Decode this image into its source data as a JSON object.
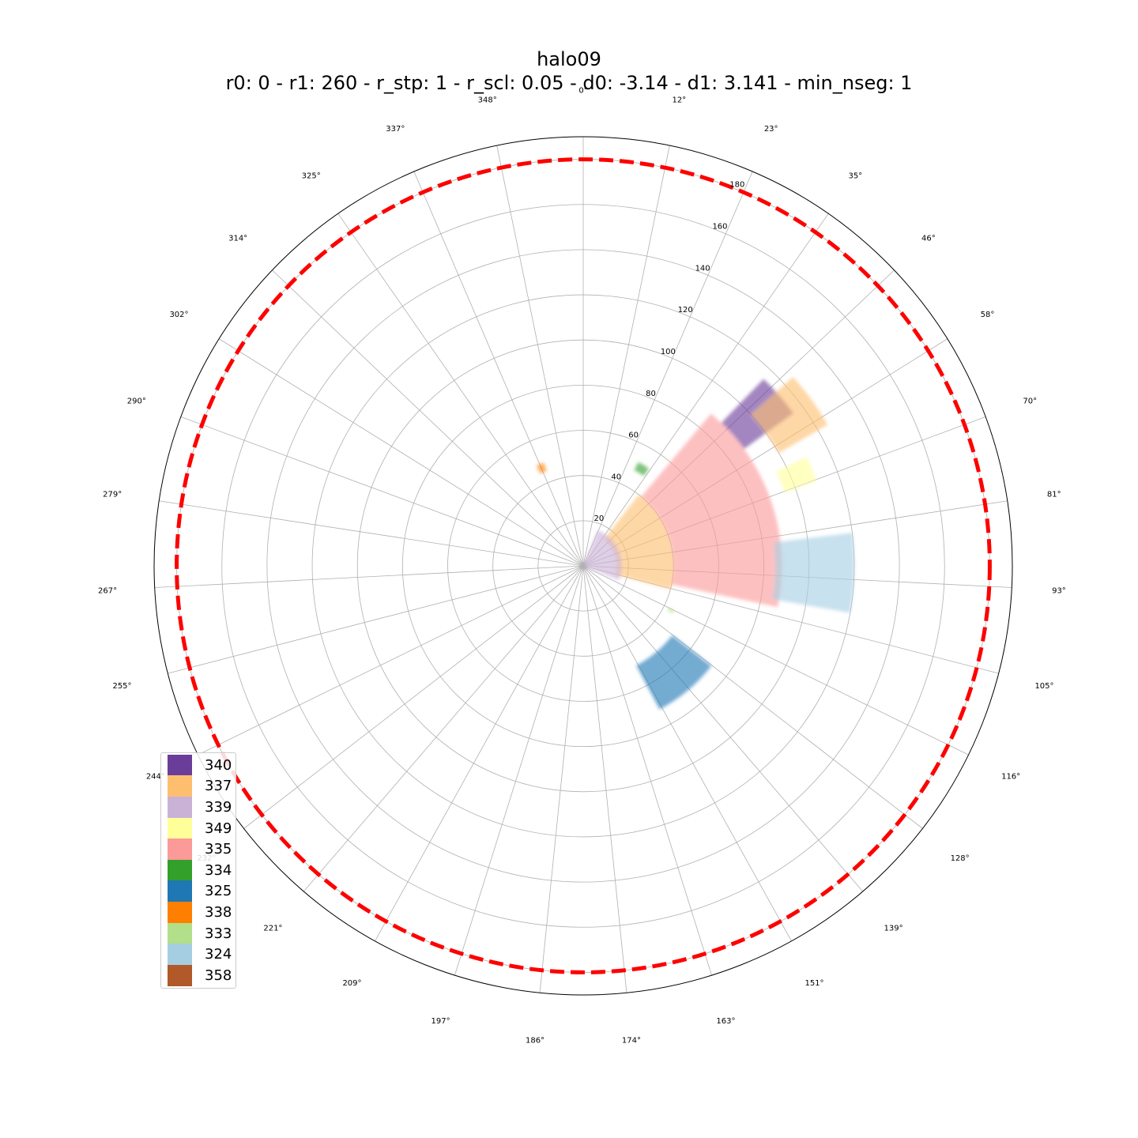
{
  "title": {
    "line1": "halo09",
    "line2": "r0: 0 - r1: 260 - r_stp: 1 - r_scl: 0.05 - d0: -3.14 - d1: 3.141 - min_nseg: 1"
  },
  "chart_data": {
    "type": "scatter",
    "projection": "polar",
    "theta_direction": "clockwise",
    "theta_zero": "top",
    "rlim": [
      0,
      190
    ],
    "r_ticks": [
      20,
      40,
      60,
      80,
      100,
      120,
      140,
      160,
      180
    ],
    "theta_ticks": [
      "0°",
      "12°",
      "23°",
      "35°",
      "46°",
      "58°",
      "70°",
      "81°",
      "93°",
      "105°",
      "116°",
      "128°",
      "139°",
      "151°",
      "163°",
      "174°",
      "186°",
      "197°",
      "209°",
      "221°",
      "232°",
      "244°",
      "255°",
      "267°",
      "279°",
      "290°",
      "302°",
      "314°",
      "325°",
      "337°",
      "348°"
    ],
    "grid": true,
    "reference_circle": {
      "r": 180,
      "color": "#ff0000",
      "style": "dashed"
    },
    "legend_position": "lower-left",
    "series": [
      {
        "name": "340",
        "color": "#6a3d9a",
        "regions": [
          {
            "theta_range": [
              44,
              54
            ],
            "r_range": [
              88,
              115
            ]
          }
        ]
      },
      {
        "name": "337",
        "color": "#fdbf6f",
        "regions": [
          {
            "theta_range": [
              38,
              105
            ],
            "r_range": [
              15,
              40
            ]
          },
          {
            "theta_range": [
              48,
              60
            ],
            "r_range": [
              100,
              125
            ]
          }
        ]
      },
      {
        "name": "339",
        "color": "#cab2d6",
        "regions": [
          {
            "theta_range": [
              22,
              112
            ],
            "r_range": [
              0,
              17
            ]
          }
        ]
      },
      {
        "name": "349",
        "color": "#ffff99",
        "regions": [
          {
            "theta_range": [
              64,
              70
            ],
            "r_range": [
              95,
              110
            ]
          }
        ]
      },
      {
        "name": "335",
        "color": "#fb9a99",
        "regions": [
          {
            "theta_range": [
              40,
              102
            ],
            "r_range": [
              40,
              88
            ]
          }
        ]
      },
      {
        "name": "334",
        "color": "#33a02c",
        "regions": [
          {
            "theta_range": [
              28,
              34
            ],
            "r_range": [
              48,
              52
            ]
          }
        ]
      },
      {
        "name": "325",
        "color": "#1f78b4",
        "regions": [
          {
            "theta_range": [
              128,
              152
            ],
            "r_range": [
              50,
              72
            ]
          }
        ]
      },
      {
        "name": "338",
        "color": "#ff7f00",
        "regions": [
          {
            "theta_range": [
              335,
              339
            ],
            "r_range": [
              45,
              49
            ]
          }
        ]
      },
      {
        "name": "333",
        "color": "#b2df8a",
        "regions": [
          {
            "theta_range": [
              116,
              118
            ],
            "r_range": [
              42,
              45
            ]
          }
        ]
      },
      {
        "name": "324",
        "color": "#a6cee3",
        "regions": [
          {
            "theta_range": [
              83,
              100
            ],
            "r_range": [
              85,
              120
            ]
          }
        ]
      },
      {
        "name": "358",
        "color": "#b15928",
        "regions": []
      }
    ]
  }
}
